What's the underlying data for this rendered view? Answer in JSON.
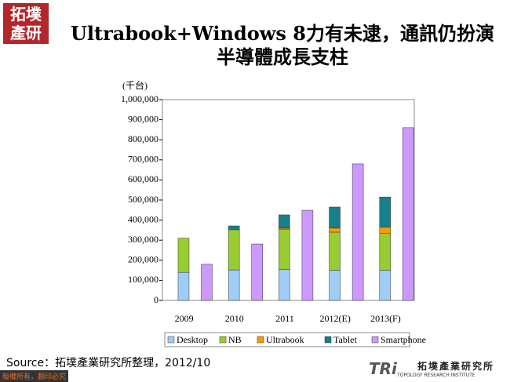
{
  "slide": {
    "logo": "拓墣產研",
    "source": "Source：拓墣產業研究所整理，2012/10",
    "footer": "版權所有，翻印必究",
    "brand_mark": "TRi",
    "brand_name": "拓墣產業研究所",
    "brand_name_en": "TOPOLOGY RESEARCH INSTITUTE"
  },
  "chart_data": {
    "type": "bar",
    "title": "Ultrabook+Windows 8力有未逮，通訊仍扮演半導體成長支柱",
    "y_label": "(千台)",
    "categories": [
      "2009",
      "2010",
      "2011",
      "2012(E)",
      "2013(F)"
    ],
    "series": [
      {
        "name": "Desktop",
        "color": "#9fcdf5",
        "stack": 0,
        "values": [
          140000,
          152000,
          155000,
          150000,
          150000
        ]
      },
      {
        "name": "NB",
        "color": "#99cc33",
        "stack": 0,
        "values": [
          170000,
          200000,
          200000,
          190000,
          185000
        ]
      },
      {
        "name": "Ultrabook",
        "color": "#ff9900",
        "stack": 0,
        "values": [
          0,
          0,
          5000,
          20000,
          30000
        ]
      },
      {
        "name": "Tablet",
        "color": "#17808a",
        "stack": 0,
        "values": [
          0,
          19000,
          66000,
          105000,
          150000
        ]
      },
      {
        "name": "Smartphone",
        "color": "#cc99ff",
        "stack": 1,
        "values": [
          180000,
          281000,
          449000,
          680000,
          860000
        ]
      }
    ],
    "ylim": [
      0,
      1000000
    ],
    "yticks": [
      0,
      {
        "value": 100000,
        "label": "100,000"
      },
      {
        "value": 200000,
        "label": "200,000"
      },
      {
        "value": 300000,
        "label": "300,000"
      },
      {
        "value": 400000,
        "label": "400,000"
      },
      {
        "value": 500000,
        "label": "500,000"
      },
      {
        "value": 600000,
        "label": "600,000"
      },
      {
        "value": 700000,
        "label": "700,000"
      },
      {
        "value": 800000,
        "label": "800,000"
      },
      {
        "value": 900000,
        "label": "900,000"
      },
      {
        "value": 1000000,
        "label": "1,000,000"
      }
    ],
    "legend": "bottom"
  }
}
